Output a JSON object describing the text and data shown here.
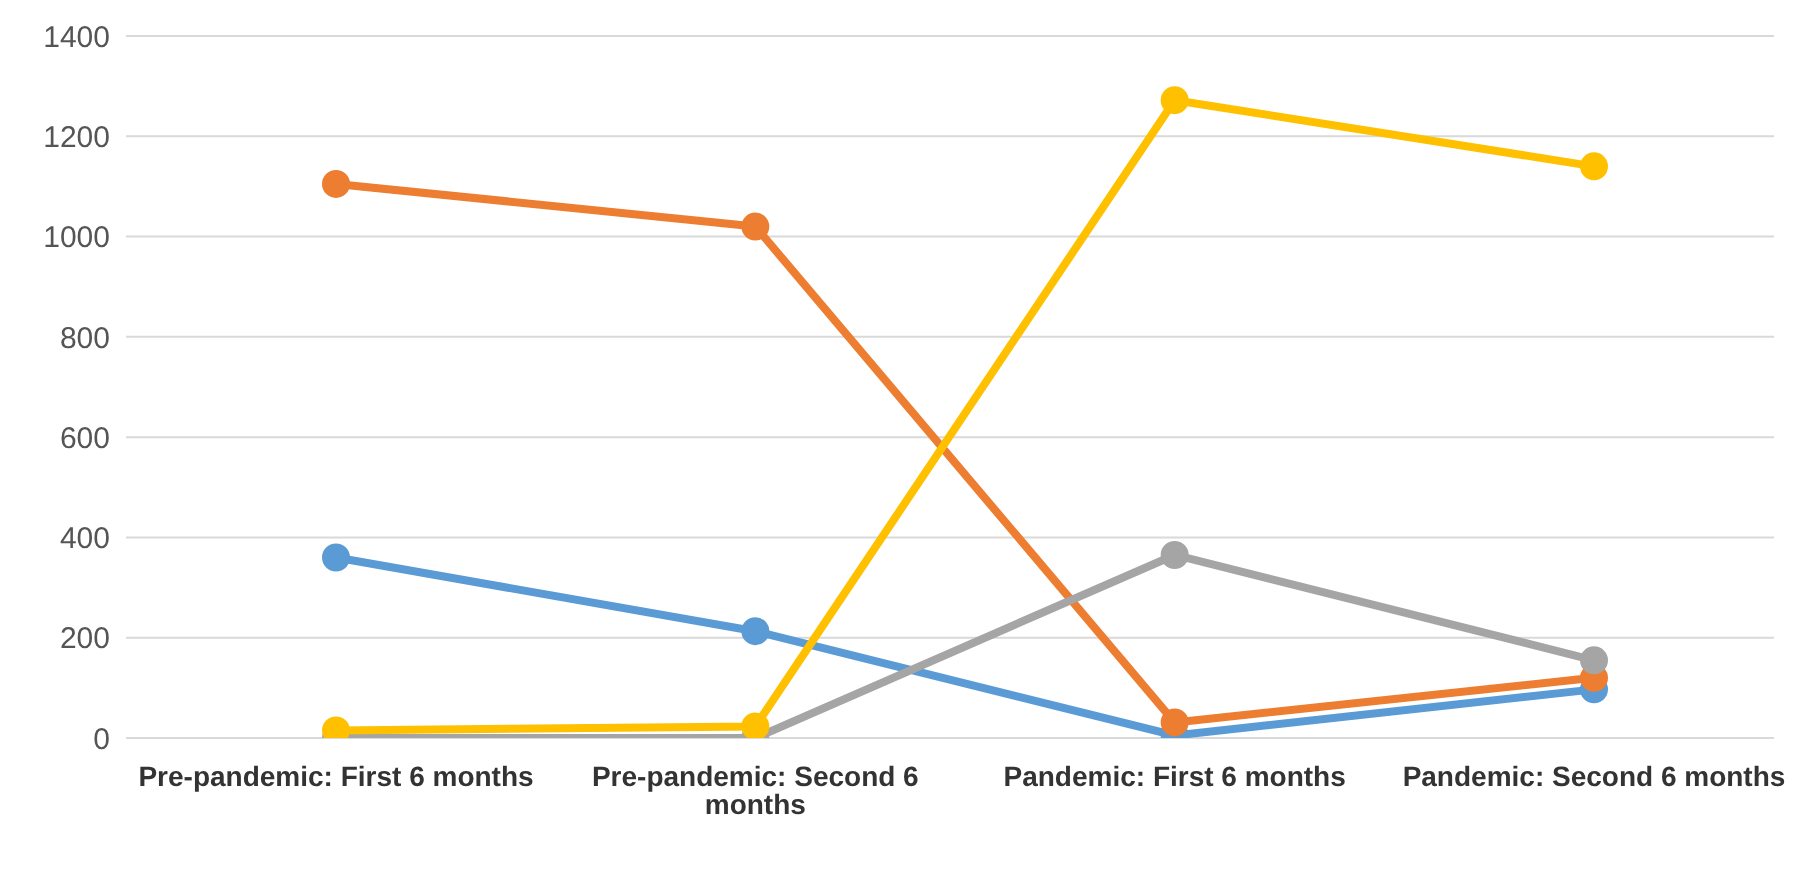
{
  "chart_data": {
    "type": "line",
    "categories": [
      "Pre-pandemic: First 6 months",
      "Pre-pandemic: Second 6 months",
      "Pandemic: First 6 months",
      "Pandemic: Second 6 months"
    ],
    "series": [
      {
        "color": "#5b9bd5",
        "values": [
          360,
          213,
          5,
          97
        ]
      },
      {
        "color": "#ed7d31",
        "values": [
          1105,
          1020,
          31,
          120
        ]
      },
      {
        "color": "#a5a5a5",
        "values": [
          0,
          0,
          365,
          155
        ]
      },
      {
        "color": "#ffc000",
        "values": [
          15,
          23,
          1272,
          1140
        ]
      }
    ],
    "ylim": [
      0,
      1400
    ],
    "yticks": [
      0,
      200,
      400,
      600,
      800,
      1000,
      1200,
      1400
    ],
    "grid": "y",
    "legend": false,
    "marker": "circle",
    "line_style": "solid"
  }
}
